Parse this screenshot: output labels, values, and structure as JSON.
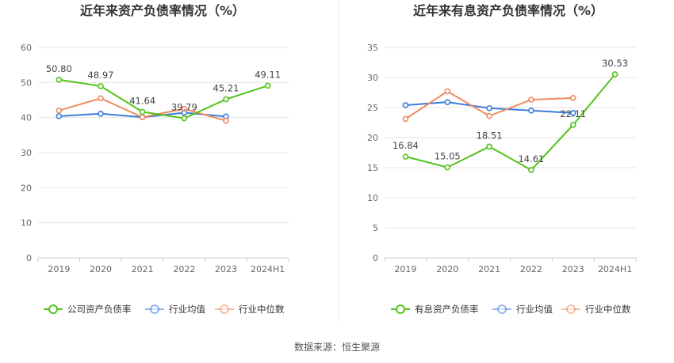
{
  "source_text": "数据来源：恒生聚源",
  "chart_data": [
    {
      "type": "line",
      "title": "近年来资产负债率情况（%）",
      "categories": [
        "2019",
        "2020",
        "2021",
        "2022",
        "2023",
        "2024H1"
      ],
      "y_ticks": [
        "0",
        "10",
        "20",
        "30",
        "40",
        "50",
        "60"
      ],
      "ylim": [
        0,
        60
      ],
      "grid": true,
      "legend_position": "bottom",
      "series": [
        {
          "name": "公司资产负债率",
          "color": "#52c41a",
          "values": [
            50.8,
            48.97,
            41.64,
            39.79,
            45.21,
            49.11
          ],
          "labels": [
            "50.80",
            "48.97",
            "41.64",
            "39.79",
            "45.21",
            "49.11"
          ]
        },
        {
          "name": "行业均值",
          "color": "#3b7ddd",
          "values": [
            40.4,
            41.1,
            40.1,
            41.4,
            40.3,
            null
          ]
        },
        {
          "name": "行业中位数",
          "color": "#f08a5d",
          "values": [
            42.0,
            45.5,
            40.1,
            42.5,
            39.1,
            null
          ]
        }
      ]
    },
    {
      "type": "line",
      "title": "近年来有息资产负债率情况（%）",
      "categories": [
        "2019",
        "2020",
        "2021",
        "2022",
        "2023",
        "2024H1"
      ],
      "y_ticks": [
        "0",
        "5",
        "10",
        "15",
        "20",
        "25",
        "30",
        "35"
      ],
      "ylim": [
        0,
        35
      ],
      "grid": true,
      "legend_position": "bottom",
      "series": [
        {
          "name": "有息资产负债率",
          "color": "#52c41a",
          "values": [
            16.84,
            15.05,
            18.51,
            14.61,
            22.11,
            30.53
          ],
          "labels": [
            "16.84",
            "15.05",
            "18.51",
            "14.61",
            "22.11",
            "30.53"
          ]
        },
        {
          "name": "行业均值",
          "color": "#3b7ddd",
          "values": [
            25.4,
            25.9,
            24.9,
            24.5,
            24.1,
            null
          ]
        },
        {
          "name": "行业中位数",
          "color": "#f08a5d",
          "values": [
            23.1,
            27.7,
            23.6,
            26.3,
            26.6,
            null
          ]
        }
      ]
    }
  ]
}
